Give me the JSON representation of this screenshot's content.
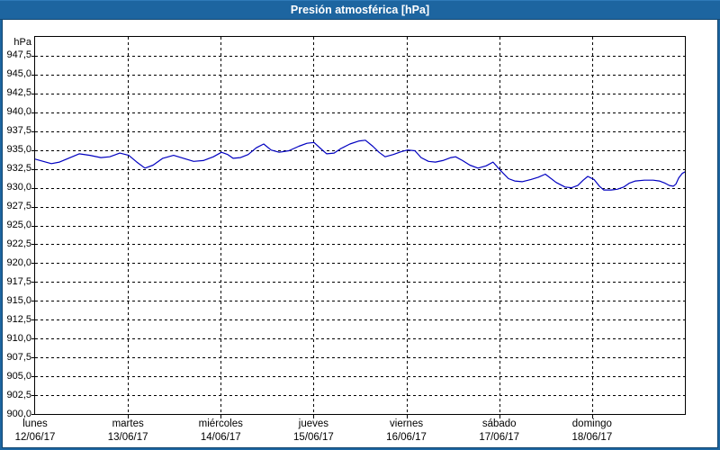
{
  "window": {
    "title": "Presión atmosférica [hPa]"
  },
  "colors": {
    "frame": "#1d65a0",
    "titlebar": "#1d65a0",
    "title_text": "#ffffff",
    "plot_line": "#0000c0",
    "grid": "#000000",
    "background": "#ffffff",
    "label_text": "#000000"
  },
  "chart_data": {
    "type": "line",
    "title": "Presión atmosférica [hPa]",
    "unit_label": "hPa",
    "ylabel": "hPa",
    "xlabel": "",
    "ylim": [
      900,
      950
    ],
    "ytick_step": 2.5,
    "grid": "dashed",
    "legend": "none",
    "yticks": [
      {
        "label": "947,5",
        "value": 947.5
      },
      {
        "label": "945,0",
        "value": 945
      },
      {
        "label": "942,5",
        "value": 942.5
      },
      {
        "label": "940,0",
        "value": 940
      },
      {
        "label": "937,5",
        "value": 937.5
      },
      {
        "label": "935,0",
        "value": 935
      },
      {
        "label": "932,5",
        "value": 932.5
      },
      {
        "label": "930,0",
        "value": 930
      },
      {
        "label": "927,5",
        "value": 927.5
      },
      {
        "label": "925,0",
        "value": 925
      },
      {
        "label": "922,5",
        "value": 922.5
      },
      {
        "label": "920,0",
        "value": 920
      },
      {
        "label": "917,5",
        "value": 917.5
      },
      {
        "label": "915,0",
        "value": 915
      },
      {
        "label": "912,5",
        "value": 912.5
      },
      {
        "label": "910,0",
        "value": 910
      },
      {
        "label": "907,5",
        "value": 907.5
      },
      {
        "label": "905,0",
        "value": 905
      },
      {
        "label": "902,5",
        "value": 902.5
      },
      {
        "label": "900,0",
        "value": 900
      }
    ],
    "xlim_hours": [
      0,
      168
    ],
    "days": [
      {
        "name": "lunes",
        "date": "12/06/17"
      },
      {
        "name": "martes",
        "date": "13/06/17"
      },
      {
        "name": "miércoles",
        "date": "14/06/17"
      },
      {
        "name": "jueves",
        "date": "15/06/17"
      },
      {
        "name": "viernes",
        "date": "16/06/17"
      },
      {
        "name": "sábado",
        "date": "17/06/17"
      },
      {
        "name": "domingo",
        "date": "18/06/17"
      }
    ],
    "series": [
      {
        "name": "Presión atmosférica",
        "color": "#0000c0",
        "points": [
          [
            0,
            933.8
          ],
          [
            2.1,
            933.5
          ],
          [
            4.2,
            933.2
          ],
          [
            6.3,
            933.4
          ],
          [
            8.6,
            933.9
          ],
          [
            11.4,
            934.5
          ],
          [
            14.2,
            934.3
          ],
          [
            17,
            934.0
          ],
          [
            19.3,
            934.1
          ],
          [
            21.9,
            934.6
          ],
          [
            24.2,
            934.3
          ],
          [
            26.3,
            933.4
          ],
          [
            28.4,
            932.6
          ],
          [
            30.5,
            933.0
          ],
          [
            33,
            933.9
          ],
          [
            35.8,
            934.3
          ],
          [
            38.4,
            933.9
          ],
          [
            41,
            933.5
          ],
          [
            43.5,
            933.6
          ],
          [
            46.1,
            934.1
          ],
          [
            48.2,
            934.7
          ],
          [
            49.8,
            934.4
          ],
          [
            51.2,
            933.9
          ],
          [
            53.1,
            934.0
          ],
          [
            55.1,
            934.4
          ],
          [
            57.2,
            935.3
          ],
          [
            59.1,
            935.8
          ],
          [
            61,
            935.0
          ],
          [
            63.1,
            934.7
          ],
          [
            65.6,
            934.9
          ],
          [
            68.2,
            935.5
          ],
          [
            70.3,
            935.9
          ],
          [
            72.1,
            936.0
          ],
          [
            73.8,
            935.2
          ],
          [
            75.4,
            934.5
          ],
          [
            77.3,
            934.6
          ],
          [
            79.1,
            935.2
          ],
          [
            81.4,
            935.8
          ],
          [
            83.8,
            936.2
          ],
          [
            85.4,
            936.3
          ],
          [
            87.3,
            935.5
          ],
          [
            88.9,
            934.7
          ],
          [
            90.5,
            934.1
          ],
          [
            92.6,
            934.4
          ],
          [
            94.7,
            934.8
          ],
          [
            96.3,
            935.0
          ],
          [
            98.2,
            934.9
          ],
          [
            99.8,
            934.0
          ],
          [
            101.7,
            933.5
          ],
          [
            103.5,
            933.4
          ],
          [
            105.4,
            933.6
          ],
          [
            107.5,
            934.0
          ],
          [
            108.7,
            934.1
          ],
          [
            110.5,
            933.6
          ],
          [
            112.4,
            933.0
          ],
          [
            114.5,
            932.6
          ],
          [
            116.6,
            932.9
          ],
          [
            118.4,
            933.4
          ],
          [
            120.3,
            932.3
          ],
          [
            122.4,
            931.2
          ],
          [
            124,
            930.9
          ],
          [
            125.9,
            930.8
          ],
          [
            128.2,
            931.1
          ],
          [
            130.1,
            931.4
          ],
          [
            131.9,
            931.8
          ],
          [
            134.7,
            930.7
          ],
          [
            137,
            930.1
          ],
          [
            138.7,
            930.0
          ],
          [
            140.3,
            930.3
          ],
          [
            141.7,
            931.0
          ],
          [
            142.9,
            931.5
          ],
          [
            144.5,
            931.1
          ],
          [
            145.9,
            930.2
          ],
          [
            147,
            929.7
          ],
          [
            148.9,
            929.7
          ],
          [
            150.5,
            929.8
          ],
          [
            152.2,
            930.1
          ],
          [
            153.6,
            930.6
          ],
          [
            155.2,
            930.9
          ],
          [
            157.5,
            931.0
          ],
          [
            159.8,
            931.0
          ],
          [
            161.4,
            930.9
          ],
          [
            162.9,
            930.6
          ],
          [
            164,
            930.3
          ],
          [
            165,
            930.2
          ],
          [
            165.7,
            930.5
          ],
          [
            166.4,
            931.3
          ],
          [
            167.3,
            931.9
          ],
          [
            168,
            932.1
          ]
        ]
      }
    ]
  }
}
